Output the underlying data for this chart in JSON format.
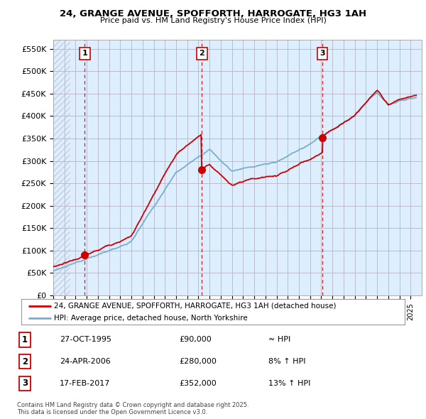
{
  "title": "24, GRANGE AVENUE, SPOFFORTH, HARROGATE, HG3 1AH",
  "subtitle": "Price paid vs. HM Land Registry's House Price Index (HPI)",
  "ylabel_ticks": [
    "£0",
    "£50K",
    "£100K",
    "£150K",
    "£200K",
    "£250K",
    "£300K",
    "£350K",
    "£400K",
    "£450K",
    "£500K",
    "£550K"
  ],
  "ytick_values": [
    0,
    50000,
    100000,
    150000,
    200000,
    250000,
    300000,
    350000,
    400000,
    450000,
    500000,
    550000
  ],
  "ylim": [
    0,
    570000
  ],
  "sale_dates_num": [
    1995.82,
    2006.31,
    2017.12
  ],
  "sale_prices": [
    90000,
    280000,
    352000
  ],
  "sale_labels": [
    "1",
    "2",
    "3"
  ],
  "red_line_color": "#cc0000",
  "blue_line_color": "#7aadcf",
  "chart_bg_color": "#ddeeff",
  "background_color": "#ffffff",
  "grid_color": "#bbbbcc",
  "vline_color": "#cc0000",
  "hatch_color": "#ccccdd",
  "legend_label_red": "24, GRANGE AVENUE, SPOFFORTH, HARROGATE, HG3 1AH (detached house)",
  "legend_label_blue": "HPI: Average price, detached house, North Yorkshire",
  "table_data": [
    [
      "1",
      "27-OCT-1995",
      "£90,000",
      "≈ HPI"
    ],
    [
      "2",
      "24-APR-2006",
      "£280,000",
      "8% ↑ HPI"
    ],
    [
      "3",
      "17-FEB-2017",
      "£352,000",
      "13% ↑ HPI"
    ]
  ],
  "footer_text": "Contains HM Land Registry data © Crown copyright and database right 2025.\nThis data is licensed under the Open Government Licence v3.0.",
  "xstart": 1993,
  "xend": 2026
}
